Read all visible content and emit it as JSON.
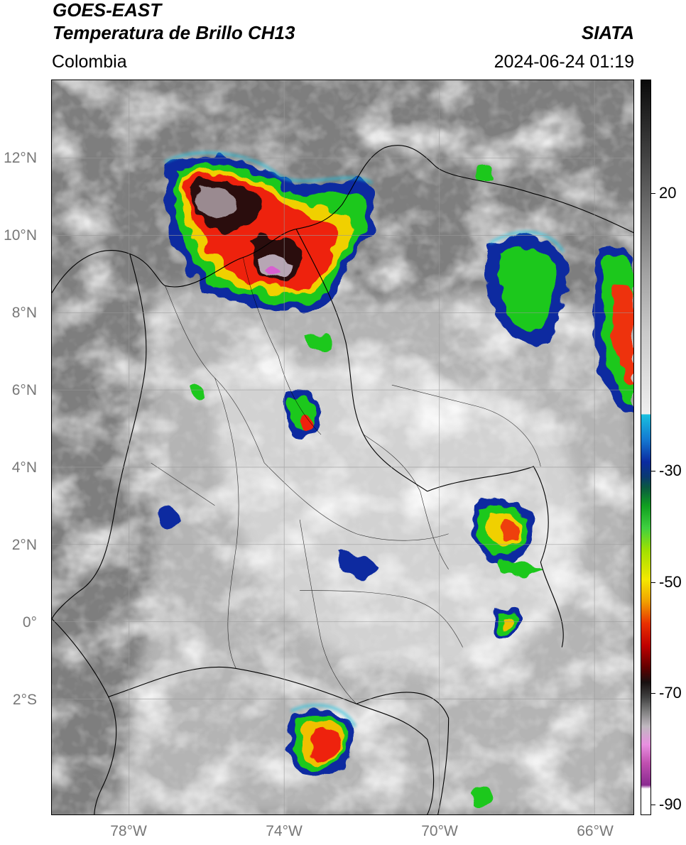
{
  "header": {
    "satellite": "GOES-EAST",
    "product": "Temperatura de Brillo CH13",
    "agency": "SIATA",
    "region": "Colombia",
    "datetime": "2024-06-24 01:19"
  },
  "map": {
    "lat_ticks": [
      {
        "value": 12,
        "label": "12°N"
      },
      {
        "value": 10,
        "label": "10°N"
      },
      {
        "value": 8,
        "label": "8°N"
      },
      {
        "value": 6,
        "label": "6°N"
      },
      {
        "value": 4,
        "label": "4°N"
      },
      {
        "value": 2,
        "label": "2°N"
      },
      {
        "value": 0,
        "label": "0°"
      },
      {
        "value": -2,
        "label": "2°S"
      }
    ],
    "lon_ticks": [
      {
        "value": -78,
        "label": "78°W"
      },
      {
        "value": -74,
        "label": "74°W"
      },
      {
        "value": -70,
        "label": "70°W"
      },
      {
        "value": -66,
        "label": "66°W"
      }
    ],
    "lon_range": [
      -80.1,
      -65.1
    ],
    "lat_range": [
      -5.0,
      14.0
    ],
    "gridlines": true
  },
  "colorbar": {
    "range": [
      -92,
      36
    ],
    "ticks": [
      {
        "value": 20,
        "label": "20"
      },
      {
        "value": -30,
        "label": "-30"
      },
      {
        "value": -50,
        "label": "-50"
      },
      {
        "value": -70,
        "label": "-70"
      },
      {
        "value": -90,
        "label": "-90"
      }
    ]
  },
  "colors": {
    "warm_black": "#111111",
    "warm_gray": "#888888",
    "cold_cyan": "#19c1e0",
    "blue": "#0a2aa0",
    "green": "#1ec81e",
    "yellow": "#f4e800",
    "red": "#e01010",
    "magenta": "#d860d0",
    "purple": "#8a2a90"
  }
}
